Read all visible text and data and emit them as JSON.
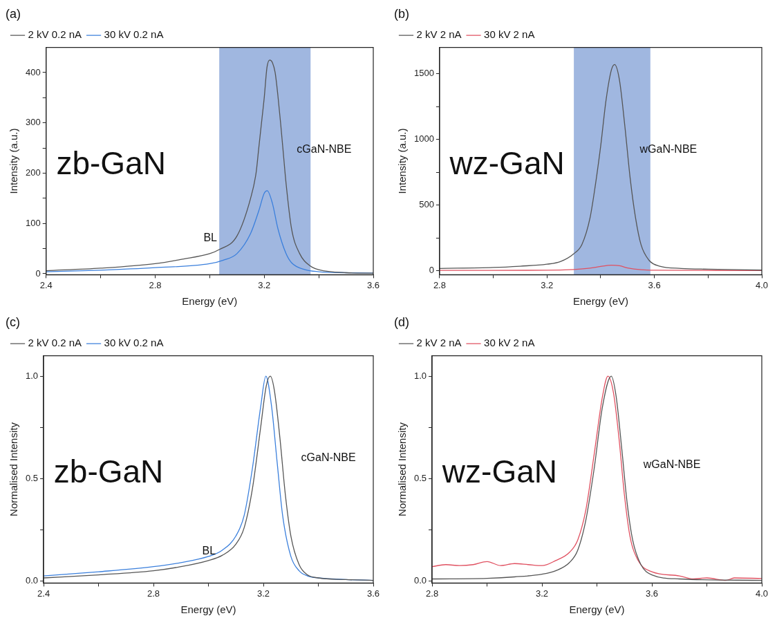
{
  "chart_data": [
    {
      "type": "line",
      "title": "(a)",
      "xlabel": "Energy (eV)",
      "ylabel": "Intensity (a.u.)",
      "xlim": [
        2.4,
        3.6
      ],
      "ylim": [
        -2,
        450
      ],
      "xticks": [
        2.4,
        {
          "value": 2.6,
          "label": null
        },
        2.8,
        {
          "value": 3.0,
          "label": null
        },
        3.2,
        {
          "value": 3.4,
          "label": null
        },
        3.6
      ],
      "yticks": [
        0,
        {
          "value": 50,
          "label": null
        },
        100,
        {
          "value": 150,
          "label": null
        },
        200,
        {
          "value": 250,
          "label": null
        },
        300,
        {
          "value": 350,
          "label": null
        },
        400
      ],
      "grid": false,
      "legend": "top left",
      "marker": "none",
      "line_style": "solid",
      "bands": [
        {
          "axis": "x",
          "from": 3.035,
          "to": 3.37,
          "color": "#a0b7e0"
        }
      ],
      "annotations": [
        "zb-GaN",
        "BL",
        "cGaN-NBE"
      ],
      "series": [
        {
          "name": "2 kV 0.2 nA",
          "color": "#555555",
          "x": [
            2.4,
            2.6,
            2.8,
            2.9,
            3.0,
            3.035,
            3.1,
            3.15,
            3.17,
            3.18,
            3.19,
            3.2,
            3.21,
            3.22,
            3.23,
            3.24,
            3.25,
            3.26,
            3.27,
            3.28,
            3.3,
            3.33,
            3.37,
            3.4,
            3.5,
            3.6
          ],
          "values": [
            6,
            11,
            20,
            29,
            40,
            48,
            75,
            150,
            200,
            250,
            300,
            350,
            410,
            425,
            420,
            400,
            355,
            300,
            240,
            180,
            90,
            40,
            15,
            8,
            2,
            1
          ]
        },
        {
          "name": "30 kV 0.2 nA",
          "color": "#3a7fdc",
          "x": [
            2.4,
            2.6,
            2.8,
            3.0,
            3.05,
            3.1,
            3.15,
            3.18,
            3.2,
            3.211,
            3.23,
            3.25,
            3.28,
            3.3,
            3.35,
            3.4,
            3.5,
            3.6
          ],
          "values": [
            4,
            7,
            12,
            20,
            27,
            40,
            80,
            125,
            160,
            165,
            140,
            90,
            40,
            22,
            8,
            4,
            2,
            1
          ]
        }
      ]
    },
    {
      "type": "line",
      "title": "(b)",
      "xlabel": "Energy (eV)",
      "ylabel": "Intensity (a.u.)",
      "xlim": [
        2.8,
        4.0
      ],
      "ylim": [
        -30,
        1700
      ],
      "xticks": [
        2.8,
        {
          "value": 3.0,
          "label": null
        },
        3.2,
        {
          "value": 3.4,
          "label": null
        },
        3.6,
        {
          "value": 3.8,
          "label": null
        },
        {
          "value": 4,
          "label": "4.0"
        }
      ],
      "yticks": [
        0,
        {
          "value": 250,
          "label": null
        },
        500,
        {
          "value": 750,
          "label": null
        },
        1000,
        {
          "value": 1250,
          "label": null
        },
        1500
      ],
      "grid": false,
      "legend": "top left",
      "marker": "none",
      "line_style": "solid",
      "bands": [
        {
          "axis": "x",
          "from": 3.3,
          "to": 3.585,
          "color": "#a0b7e0"
        }
      ],
      "annotations": [
        "wz-GaN",
        "wGaN-NBE"
      ],
      "series": [
        {
          "name": "2 kV 2 nA",
          "color": "#555555",
          "x": [
            2.8,
            3.0,
            3.1,
            3.2,
            3.25,
            3.3,
            3.33,
            3.36,
            3.38,
            3.4,
            3.42,
            3.44,
            3.452,
            3.47,
            3.49,
            3.51,
            3.53,
            3.55,
            3.58,
            3.62,
            3.7,
            3.8,
            4.0
          ],
          "values": [
            18,
            25,
            35,
            50,
            70,
            130,
            200,
            400,
            650,
            950,
            1300,
            1530,
            1570,
            1450,
            1100,
            700,
            400,
            200,
            80,
            35,
            18,
            12,
            5
          ]
        },
        {
          "name": "30 kV 2 nA",
          "color": "#e05060",
          "x": [
            2.8,
            3.2,
            3.3,
            3.36,
            3.4,
            3.44,
            3.47,
            3.5,
            3.55,
            3.6,
            4.0
          ],
          "values": [
            3,
            4,
            10,
            20,
            33,
            42,
            38,
            22,
            8,
            4,
            2
          ]
        }
      ]
    },
    {
      "type": "line",
      "title": "(c)",
      "xlabel": "Energy (eV)",
      "ylabel": "Normalised Intensity",
      "xlim": [
        2.4,
        3.6
      ],
      "ylim": [
        -0.01,
        1.1
      ],
      "xticks": [
        2.4,
        {
          "value": 2.6,
          "label": null
        },
        2.8,
        {
          "value": 3.0,
          "label": null
        },
        3.2,
        {
          "value": 3.4,
          "label": null
        },
        3.6
      ],
      "yticks": [
        {
          "value": 0,
          "label": "0.0"
        },
        {
          "value": 0.25,
          "label": null
        },
        0.5,
        {
          "value": 0.75,
          "label": null
        },
        {
          "value": 1,
          "label": "1.0"
        }
      ],
      "grid": false,
      "legend": "top left",
      "marker": "none",
      "line_style": "solid",
      "annotations": [
        "zb-GaN",
        "BL",
        "cGaN-NBE"
      ],
      "series": [
        {
          "name": "2 kV 0.2 nA",
          "color": "#555555",
          "x": [
            2.4,
            2.6,
            2.8,
            2.9,
            3.0,
            3.05,
            3.1,
            3.13,
            3.16,
            3.19,
            3.21,
            3.225,
            3.24,
            3.26,
            3.28,
            3.3,
            3.33,
            3.36,
            3.4,
            3.5,
            3.6
          ],
          "values": [
            0.015,
            0.03,
            0.05,
            0.07,
            0.1,
            0.125,
            0.18,
            0.26,
            0.45,
            0.75,
            0.95,
            1.0,
            0.93,
            0.7,
            0.42,
            0.22,
            0.08,
            0.03,
            0.015,
            0.007,
            0.003
          ]
        },
        {
          "name": "30 kV 0.2 nA",
          "color": "#3a7fdc",
          "x": [
            2.4,
            2.6,
            2.8,
            2.9,
            3.0,
            3.05,
            3.1,
            3.13,
            3.16,
            3.19,
            3.209,
            3.23,
            3.25,
            3.27,
            3.3,
            3.33,
            3.36,
            3.4,
            3.5,
            3.6
          ],
          "values": [
            0.025,
            0.045,
            0.07,
            0.09,
            0.12,
            0.15,
            0.22,
            0.32,
            0.55,
            0.85,
            1.0,
            0.85,
            0.58,
            0.32,
            0.12,
            0.05,
            0.025,
            0.015,
            0.007,
            0.003
          ]
        }
      ]
    },
    {
      "type": "line",
      "title": "(d)",
      "xlabel": "Energy (eV)",
      "ylabel": "Normalised Intensity",
      "xlim": [
        2.8,
        4.0
      ],
      "ylim": [
        -0.01,
        1.1
      ],
      "xticks": [
        2.8,
        {
          "value": 3.0,
          "label": null
        },
        3.2,
        {
          "value": 3.4,
          "label": null
        },
        3.6,
        {
          "value": 3.8,
          "label": null
        },
        {
          "value": 4,
          "label": "4.0"
        }
      ],
      "yticks": [
        {
          "value": 0,
          "label": "0.0"
        },
        {
          "value": 0.25,
          "label": null
        },
        0.5,
        {
          "value": 0.75,
          "label": null
        },
        {
          "value": 1,
          "label": "1.0"
        }
      ],
      "grid": false,
      "legend": "top left",
      "marker": "none",
      "line_style": "solid",
      "annotations": [
        "wz-GaN",
        "wGaN-NBE"
      ],
      "series": [
        {
          "name": "2 kV 2 nA",
          "color": "#555555",
          "x": [
            2.8,
            3.0,
            3.1,
            3.2,
            3.25,
            3.3,
            3.33,
            3.36,
            3.39,
            3.42,
            3.452,
            3.47,
            3.49,
            3.51,
            3.53,
            3.56,
            3.6,
            3.7,
            4.0
          ],
          "values": [
            0.01,
            0.013,
            0.02,
            0.033,
            0.05,
            0.09,
            0.15,
            0.3,
            0.55,
            0.85,
            1.0,
            0.9,
            0.65,
            0.38,
            0.2,
            0.08,
            0.03,
            0.01,
            0.003
          ]
        },
        {
          "name": "30 kV 2 nA",
          "color": "#e05060",
          "x": [
            2.8,
            2.85,
            2.9,
            2.95,
            3.0,
            3.05,
            3.1,
            3.15,
            3.2,
            3.25,
            3.3,
            3.33,
            3.36,
            3.39,
            3.42,
            3.44,
            3.46,
            3.48,
            3.5,
            3.52,
            3.55,
            3.6,
            3.7,
            3.75,
            3.8,
            3.87,
            3.9,
            4.0
          ],
          "values": [
            0.07,
            0.08,
            0.075,
            0.08,
            0.095,
            0.075,
            0.085,
            0.08,
            0.075,
            0.1,
            0.14,
            0.2,
            0.35,
            0.62,
            0.9,
            1.0,
            0.92,
            0.7,
            0.42,
            0.22,
            0.1,
            0.045,
            0.025,
            0.01,
            0.015,
            0.003,
            0.015,
            0.012
          ]
        }
      ]
    }
  ]
}
